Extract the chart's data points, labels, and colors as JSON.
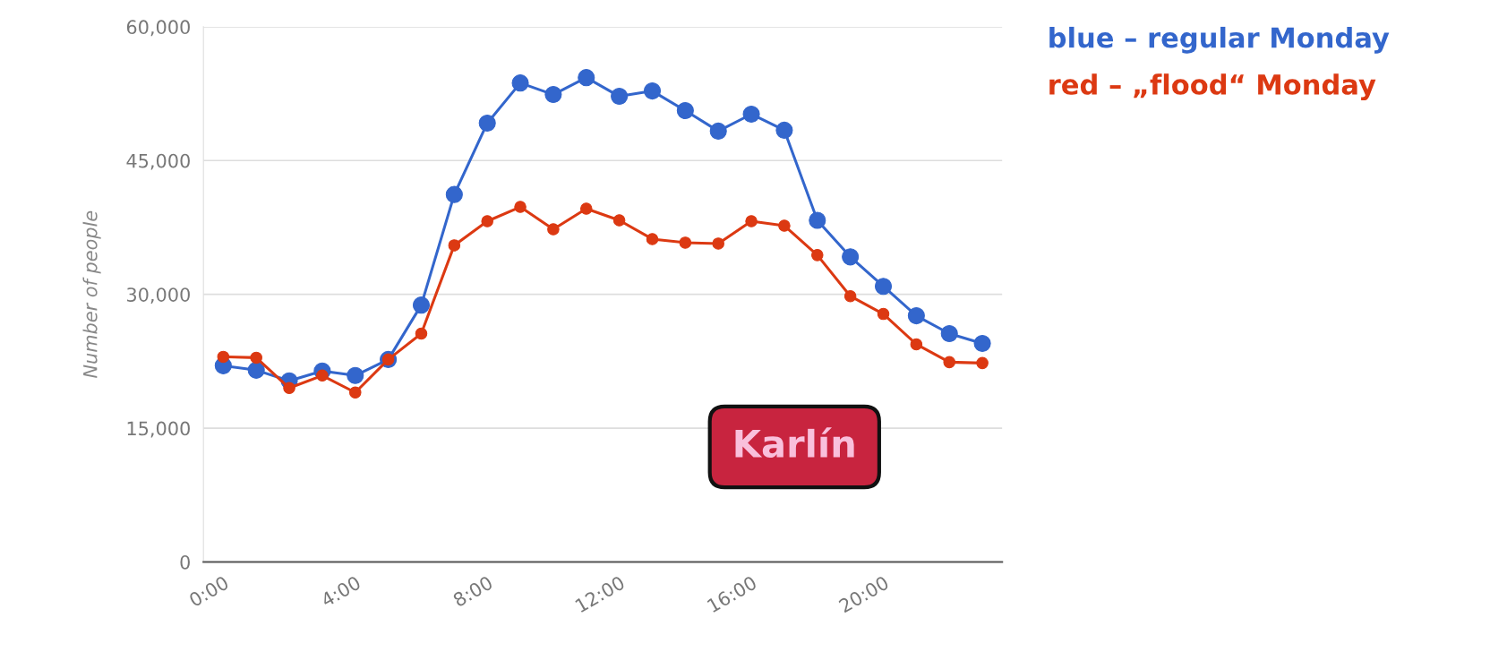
{
  "chart_data": {
    "type": "line",
    "ylabel": "Number of people",
    "x": [
      0,
      1,
      2,
      3,
      4,
      5,
      6,
      7,
      8,
      9,
      10,
      11,
      12,
      13,
      14,
      15,
      16,
      17,
      18,
      19,
      20,
      21,
      22,
      23
    ],
    "series": [
      {
        "name": "blue – regular Monday",
        "color": "#3366cc",
        "values": [
          22000,
          21500,
          20300,
          21400,
          20900,
          22700,
          28800,
          41200,
          49200,
          53700,
          52400,
          54300,
          52200,
          52800,
          50600,
          48300,
          50200,
          48400,
          38300,
          34200,
          30900,
          27600,
          25600,
          24500
        ]
      },
      {
        "name": "red – „flood“ Monday",
        "color": "#dc3912",
        "values": [
          23000,
          22900,
          19500,
          20900,
          19000,
          22700,
          25600,
          35500,
          38200,
          39800,
          37300,
          39600,
          38300,
          36200,
          35800,
          35700,
          38200,
          37700,
          34400,
          29800,
          27800,
          24400,
          22400,
          22300
        ]
      }
    ],
    "xlim": [
      -0.6,
      23.6
    ],
    "xticks": [
      {
        "value": 0,
        "label": "0:00"
      },
      {
        "value": 4,
        "label": "4:00"
      },
      {
        "value": 8,
        "label": "8:00"
      },
      {
        "value": 12,
        "label": "12:00"
      },
      {
        "value": 16,
        "label": "16:00"
      },
      {
        "value": 20,
        "label": "20:00"
      }
    ],
    "ylim": [
      0,
      60000
    ],
    "yticks": [
      0,
      {
        "value": 15000,
        "label": "15,000"
      },
      {
        "value": 30000,
        "label": "30,000"
      },
      {
        "value": 45000,
        "label": "45,000"
      },
      {
        "value": 60000,
        "label": "60,000"
      }
    ],
    "annotations": [
      "Karlín"
    ],
    "grid": "y",
    "legend": "top right",
    "marker": "circle",
    "line_style": "solid"
  }
}
